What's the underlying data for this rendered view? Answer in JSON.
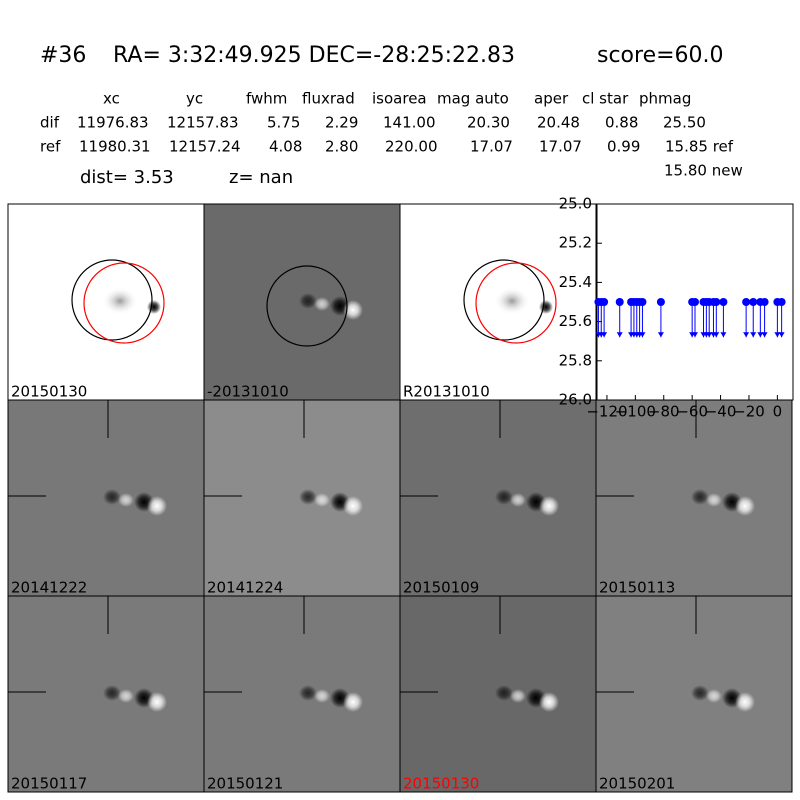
{
  "header": {
    "id": "#36",
    "coords": "RA= 3:32:49.925 DEC=-28:25:22.83",
    "score": "score=60.0"
  },
  "table": {
    "columns": [
      "xc",
      "yc",
      "fwhm",
      "fluxrad",
      "isoarea",
      "mag auto",
      "aper",
      "cl star",
      "phmag"
    ],
    "rows": [
      [
        "dif",
        "11976.83",
        "12157.83",
        "5.75",
        "2.29",
        "141.00",
        "20.30",
        "20.48",
        "0.88",
        "25.50"
      ],
      [
        "ref",
        "11980.31",
        "12157.24",
        "4.08",
        "2.80",
        "220.00",
        "17.07",
        "17.07",
        "0.99",
        "15.85 ref"
      ]
    ],
    "extra": "15.80 new"
  },
  "dist": "dist=  3.53",
  "z": "z=   nan",
  "stamps": [
    {
      "label": "20150130"
    },
    {
      "label": "-20131010"
    },
    {
      "label": "R20131010"
    },
    {
      "label": "20141222"
    },
    {
      "label": "20141224"
    },
    {
      "label": "20150109"
    },
    {
      "label": "20150113"
    },
    {
      "label": "20150117"
    },
    {
      "label": "20150121"
    },
    {
      "label": "20150130",
      "color": "#ff0000"
    },
    {
      "label": "20150201"
    }
  ],
  "chart_data": {
    "type": "scatter",
    "x": [
      -126,
      -124,
      -122,
      -111,
      -103,
      -101,
      -99,
      -97,
      -95,
      -82,
      -60,
      -58,
      -52,
      -50,
      -48,
      -45,
      -43,
      -38,
      -22,
      -17,
      -12,
      -9,
      0,
      3
    ],
    "values": [
      25.5,
      25.5,
      25.5,
      25.5,
      25.5,
      25.5,
      25.5,
      25.5,
      25.5,
      25.5,
      25.5,
      25.5,
      25.5,
      25.5,
      25.5,
      25.5,
      25.5,
      25.5,
      25.5,
      25.5,
      25.5,
      25.5,
      25.5,
      25.5
    ],
    "limit_arrow": 0.18,
    "color": "#0000ff",
    "xlim": [
      -127,
      11
    ],
    "ylim": [
      26.0,
      25.0
    ],
    "xticks": [
      {
        "value": -120,
        "label": "−120"
      },
      {
        "value": -100,
        "label": "−100"
      },
      {
        "value": -80,
        "label": "−80"
      },
      {
        "value": -60,
        "label": "−60"
      },
      {
        "value": -40,
        "label": "−40"
      },
      {
        "value": -20,
        "label": "−20"
      },
      0
    ],
    "yticks": [
      {
        "value": 25.0,
        "label": "25.0"
      },
      25.2,
      25.4,
      25.6,
      25.8,
      {
        "value": 26.0,
        "label": "26.0"
      }
    ]
  }
}
